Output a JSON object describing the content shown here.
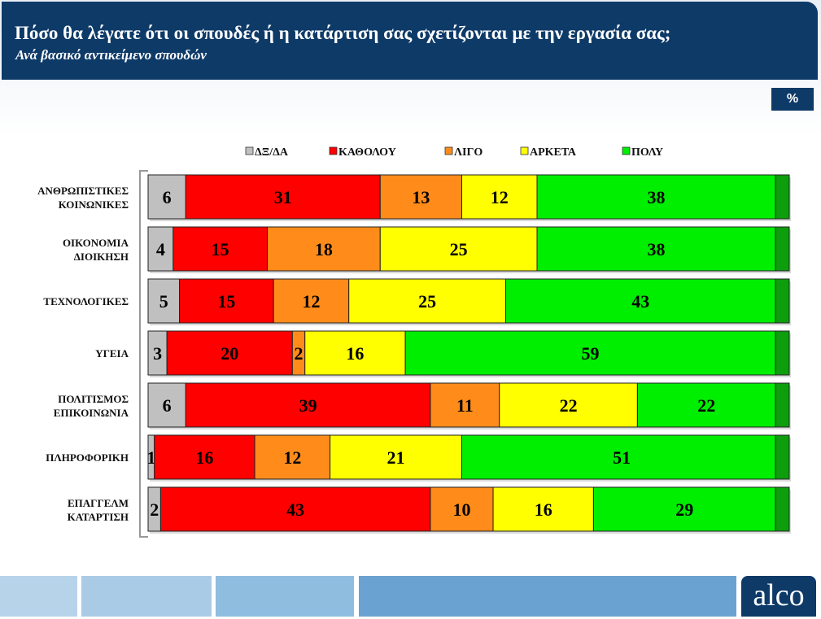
{
  "header": {
    "title": "Πόσο θα λέγατε ότι οι σπουδές ή η κατάρτιση σας σχετίζονται με την εργασία σας;",
    "subtitle": "Ανά βασικό αντικείμενο σπουδών"
  },
  "badge": "%",
  "logo": "alco",
  "colors": {
    "dk": "#c0c0c0",
    "katholou": "#ff0000",
    "ligo": "#ff8c1a",
    "arketa": "#ffff00",
    "poly": "#00ee00",
    "poly_edge": "#0d9d0d",
    "brand": "#0e3a68"
  },
  "chart_data": {
    "type": "bar",
    "orientation": "horizontal",
    "stacked": true,
    "legend": [
      "ΔΞ/ΔΑ",
      "ΚΑΘΟΛΟΥ",
      "ΛΙΓΟ",
      "ΑΡΚΕΤΑ",
      "ΠΟΛΥ"
    ],
    "legend_position": "top",
    "categories": [
      [
        "ΑΝΘΡΩΠΙΣΤΙΚΕΣ",
        "ΚΟΙΝΩΝΙΚΕΣ"
      ],
      [
        "ΟΙΚΟΝΟΜΙΑ",
        "ΔΙΟΙΚΗΣΗ"
      ],
      [
        "ΤΕΧΝΟΛΟΓΙΚΕΣ"
      ],
      [
        "ΥΓΕΙΑ"
      ],
      [
        "ΠΟΛΙΤΙΣΜΟΣ",
        "ΕΠΙΚΟΙΝΩΝΙΑ"
      ],
      [
        "ΠΛΗΡΟΦΟΡΙΚΗ"
      ],
      [
        "ΕΠΑΓΓΕΛΜ",
        "ΚΑΤΑΡΤΙΣΗ"
      ]
    ],
    "series": [
      {
        "name": "ΔΞ/ΔΑ",
        "values": [
          6,
          4,
          5,
          3,
          6,
          1,
          2
        ]
      },
      {
        "name": "ΚΑΘΟΛΟΥ",
        "values": [
          31,
          15,
          15,
          20,
          39,
          16,
          43
        ]
      },
      {
        "name": "ΛΙΓΟ",
        "values": [
          13,
          18,
          12,
          2,
          11,
          12,
          10
        ]
      },
      {
        "name": "ΑΡΚΕΤΑ",
        "values": [
          12,
          25,
          25,
          16,
          22,
          21,
          16
        ]
      },
      {
        "name": "ΠΟΛΥ",
        "values": [
          38,
          38,
          43,
          59,
          22,
          51,
          29
        ]
      }
    ],
    "unit": "%"
  }
}
